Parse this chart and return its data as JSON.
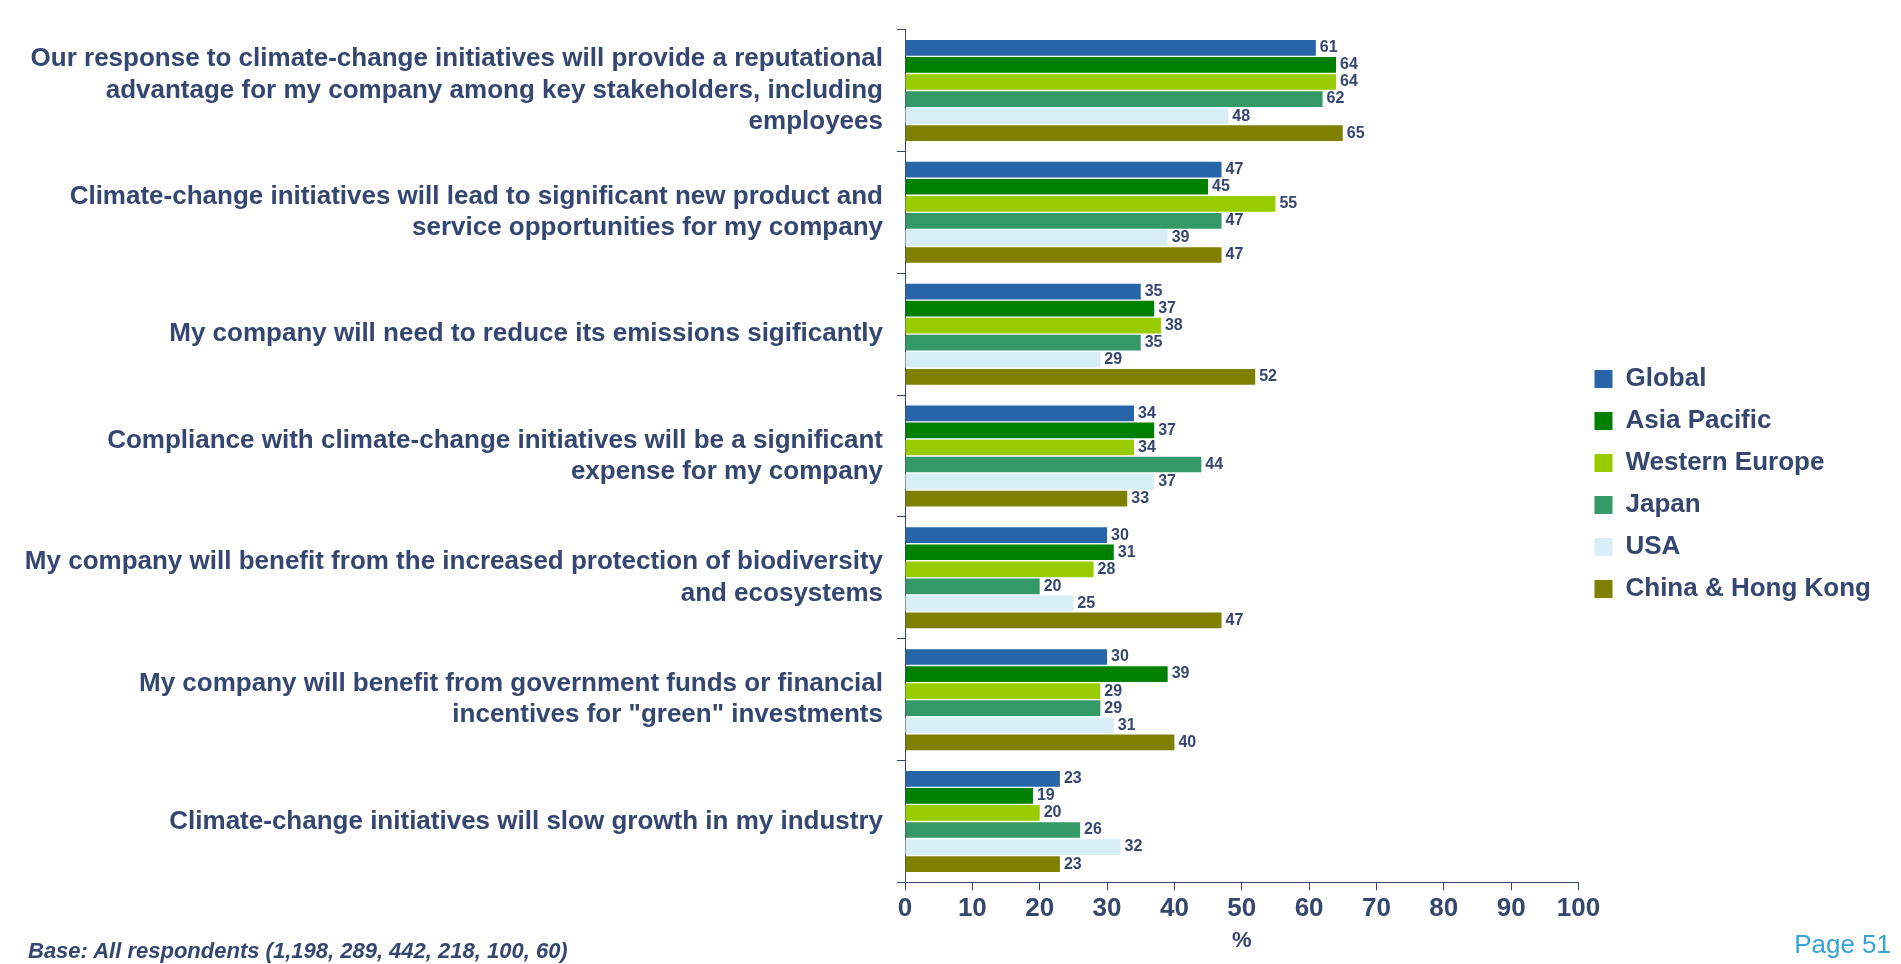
{
  "chart_data": {
    "type": "bar",
    "orientation": "horizontal",
    "xlabel": "%",
    "categories": [
      "Our response to climate-change initiatives will provide a reputational advantage for my company among key stakeholders, including employees",
      "Climate-change initiatives will lead to significant new product and service opportunities for my company",
      "My company will need to reduce its emissions sigificantly",
      "Compliance with climate-change initiatives will be a significant expense for my company",
      "My company will benefit from the increased protection of biodiversity and ecosystems",
      "My company will benefit from government funds or financial incentives for \"green\" investments",
      "Climate-change initiatives will slow growth in my industry"
    ],
    "series": [
      {
        "name": "Global",
        "color": "#2864a8",
        "values": [
          61,
          47,
          35,
          34,
          30,
          30,
          23
        ]
      },
      {
        "name": "Asia Pacific",
        "color": "#008000",
        "values": [
          64,
          45,
          37,
          37,
          31,
          39,
          19
        ]
      },
      {
        "name": "Western Europe",
        "color": "#99cc00",
        "values": [
          64,
          55,
          38,
          34,
          28,
          29,
          20
        ]
      },
      {
        "name": "Japan",
        "color": "#339966",
        "values": [
          62,
          47,
          35,
          44,
          20,
          29,
          26
        ]
      },
      {
        "name": "USA",
        "color": "#d8eef6",
        "values": [
          48,
          39,
          29,
          37,
          25,
          31,
          32
        ]
      },
      {
        "name": "China & Hong Kong",
        "color": "#808000",
        "values": [
          65,
          47,
          52,
          33,
          47,
          40,
          23
        ]
      }
    ],
    "xlim": [
      0,
      100
    ],
    "xticks": [
      0,
      10,
      20,
      30,
      40,
      50,
      60,
      70,
      80,
      90,
      100
    ],
    "grid": false,
    "legend": "right",
    "data_labels": true,
    "annotations": [
      "Base: All respondents (1,198, 289, 442, 218, 100, 60)",
      "Page 51"
    ]
  }
}
